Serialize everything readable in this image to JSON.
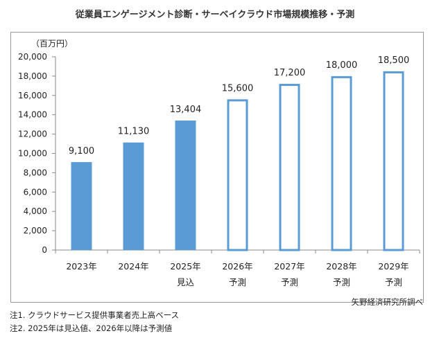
{
  "chart_data": {
    "type": "bar",
    "title": "従業員エンゲージメント診断・サーベイクラウド市場規模推移・予測",
    "ylabel": "（百万円）",
    "ylim": [
      0,
      20000
    ],
    "yticks": [
      "0",
      "2,000",
      "4,000",
      "6,000",
      "8,000",
      "10,000",
      "12,000",
      "14,000",
      "16,000",
      "18,000",
      "20,000"
    ],
    "categories": [
      "2023年",
      "2024年",
      "2025年",
      "2026年",
      "2027年",
      "2028年",
      "2029年"
    ],
    "subcategories": [
      "",
      "",
      "見込",
      "予測",
      "予測",
      "予測",
      "予測"
    ],
    "values": [
      9100,
      11130,
      13404,
      15600,
      17200,
      18000,
      18500
    ],
    "value_labels": [
      "9,100",
      "11,130",
      "13,404",
      "15,600",
      "17,200",
      "18,000",
      "18,500"
    ],
    "bar_styles": [
      "filled",
      "filled",
      "filled",
      "outline",
      "outline",
      "outline",
      "outline"
    ],
    "bar_color": "#5b9bd5",
    "grid": false
  },
  "source": "矢野経済研究所調べ",
  "notes": [
    "注1.  クラウドサービス提供事業者売上高ベース",
    "注2.  2025年は見込値、2026年以降は予測値"
  ]
}
